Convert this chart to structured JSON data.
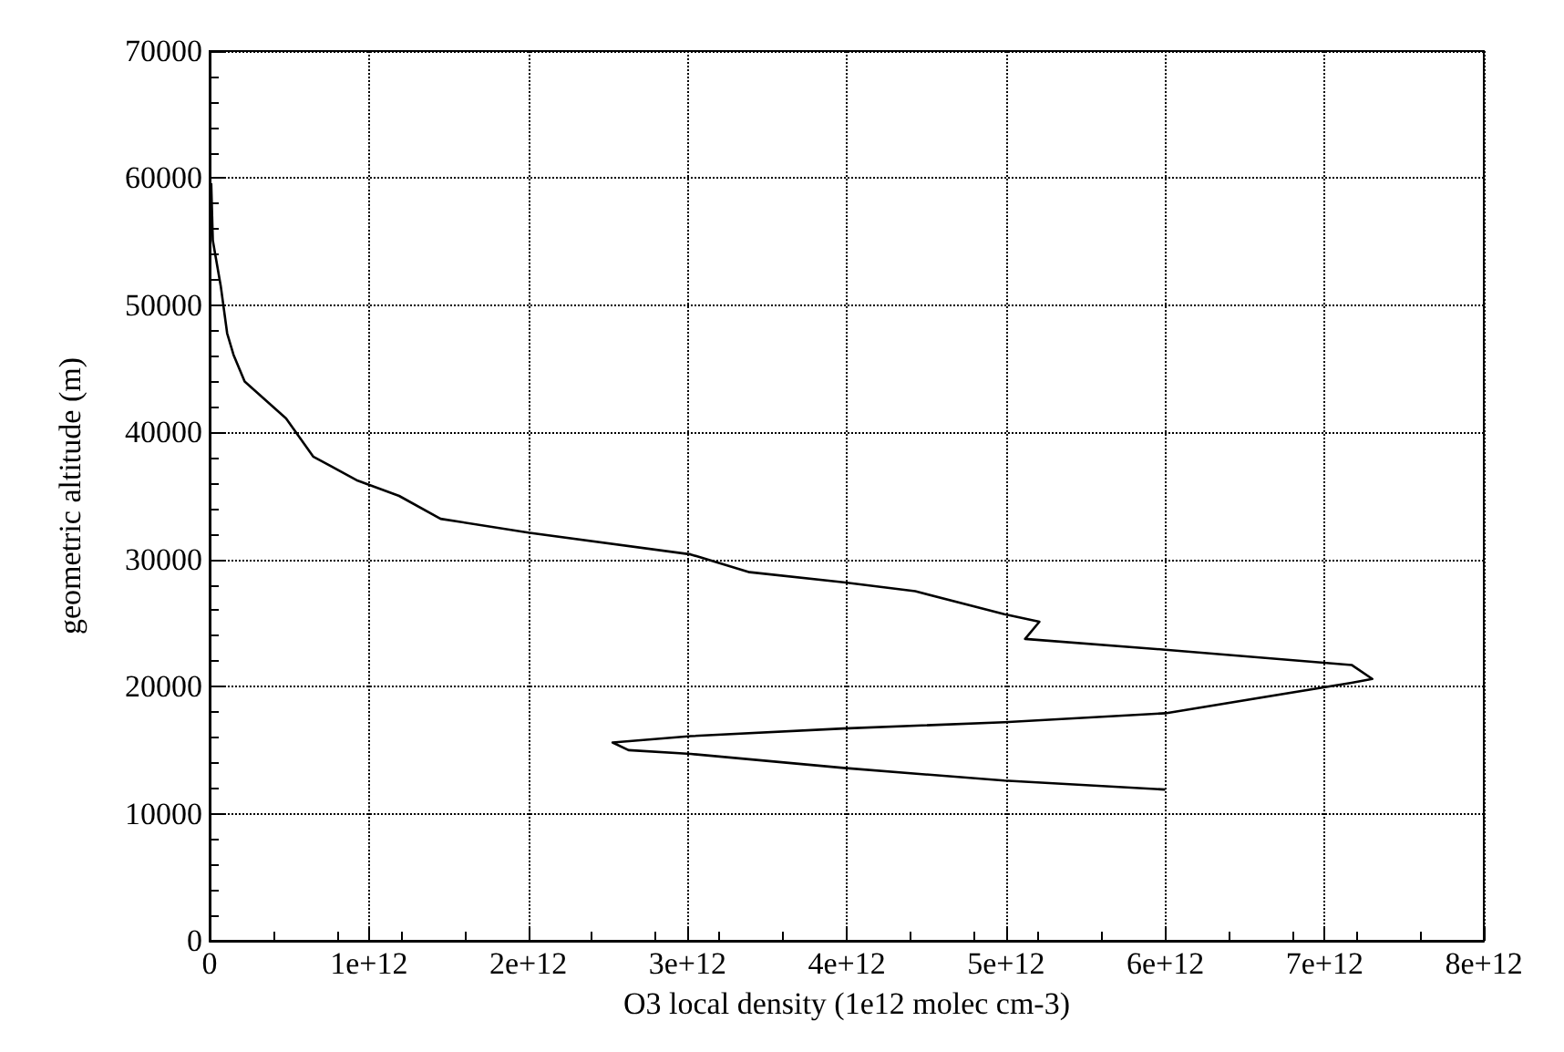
{
  "chart_data": {
    "type": "line",
    "xlabel": "O3 local density (1e12 molec cm-3)",
    "ylabel": "geometric altitude (m)",
    "x": [
      10000000000.0,
      20000000000.0,
      70000000000.0,
      110000000000.0,
      150000000000.0,
      220000000000.0,
      480000000000.0,
      650000000000.0,
      930000000000.0,
      1190000000000.0,
      1450000000000.0,
      2010000000000.0,
      3020000000000.0,
      3390000000000.0,
      3980000000000.0,
      4430000000000.0,
      4990000000000.0,
      5210000000000.0,
      5120000000000.0,
      6000000000000.0,
      7170000000000.0,
      7300000000000.0,
      7170000000000.0,
      6000000000000.0,
      4990000000000.0,
      3980000000000.0,
      3020000000000.0,
      2530000000000.0,
      2630000000000.0,
      3020000000000.0,
      3980000000000.0,
      4990000000000.0,
      6000000000000.0
    ],
    "values": [
      59600,
      55100,
      51500,
      47800,
      46100,
      44000,
      41100,
      38100,
      36200,
      35000,
      33200,
      32100,
      30400,
      29000,
      28200,
      27500,
      25700,
      25100,
      23750,
      22900,
      21700,
      20600,
      20300,
      17900,
      17200,
      16700,
      16100,
      15600,
      15000,
      14700,
      13600,
      12600,
      11900
    ],
    "color": "#000000",
    "marker": "none",
    "line_style": "solid",
    "grid": true,
    "xlim": [
      0,
      8000000000000.0
    ],
    "xticks": [
      0,
      {
        "value": 1000000000000.0,
        "label": "1e+12"
      },
      {
        "value": 2000000000000.0,
        "label": "2e+12"
      },
      {
        "value": 3000000000000.0,
        "label": "3e+12"
      },
      {
        "value": 4000000000000.0,
        "label": "4e+12"
      },
      {
        "value": 5000000000000.0,
        "label": "5e+12"
      },
      {
        "value": 6000000000000.0,
        "label": "6e+12"
      },
      {
        "value": 7000000000000.0,
        "label": "7e+12"
      },
      {
        "value": 8000000000000.0,
        "label": "8e+12"
      }
    ],
    "ylim": [
      0,
      70000
    ],
    "yticks": [
      0,
      10000,
      20000,
      30000,
      40000,
      50000,
      60000,
      70000
    ]
  }
}
